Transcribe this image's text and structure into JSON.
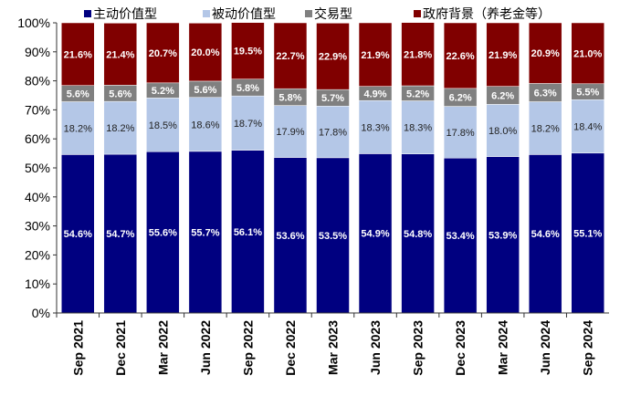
{
  "chart_data": {
    "type": "bar",
    "stacked": true,
    "categories": [
      "Sep 2021",
      "Dec 2021",
      "Mar 2022",
      "Jun 2022",
      "Sep 2022",
      "Dec 2022",
      "Mar 2023",
      "Jun 2023",
      "Sep 2023",
      "Dec 2023",
      "Mar 2024",
      "Jun 2024",
      "Sep 2024"
    ],
    "series": [
      {
        "name": "主动价值型",
        "color": "#000080",
        "label_color": "#ffffff",
        "values": [
          54.6,
          54.7,
          55.6,
          55.7,
          56.1,
          53.6,
          53.5,
          54.9,
          54.8,
          53.4,
          53.9,
          54.6,
          55.1
        ]
      },
      {
        "name": "被动价值型",
        "color": "#b4c7e7",
        "label_color": "#222222",
        "values": [
          18.2,
          18.2,
          18.5,
          18.6,
          18.7,
          17.9,
          17.8,
          18.3,
          18.3,
          17.8,
          18.0,
          18.2,
          18.4
        ]
      },
      {
        "name": "交易型",
        "color": "#808080",
        "label_color": "#ffffff",
        "values": [
          5.6,
          5.6,
          5.2,
          5.6,
          5.8,
          5.8,
          5.7,
          4.9,
          5.2,
          6.2,
          6.2,
          6.3,
          5.5
        ]
      },
      {
        "name": "政府背景（养老金等）",
        "color": "#800000",
        "label_color": "#ffffff",
        "values": [
          21.6,
          21.4,
          20.7,
          20.0,
          19.5,
          22.7,
          22.9,
          21.9,
          21.8,
          22.6,
          21.9,
          20.9,
          21.0
        ]
      }
    ],
    "ylim": [
      0,
      100
    ],
    "yticks": [
      "0%",
      "10%",
      "20%",
      "30%",
      "40%",
      "50%",
      "60%",
      "70%",
      "80%",
      "90%",
      "100%"
    ],
    "legend": "top",
    "grid": false
  }
}
